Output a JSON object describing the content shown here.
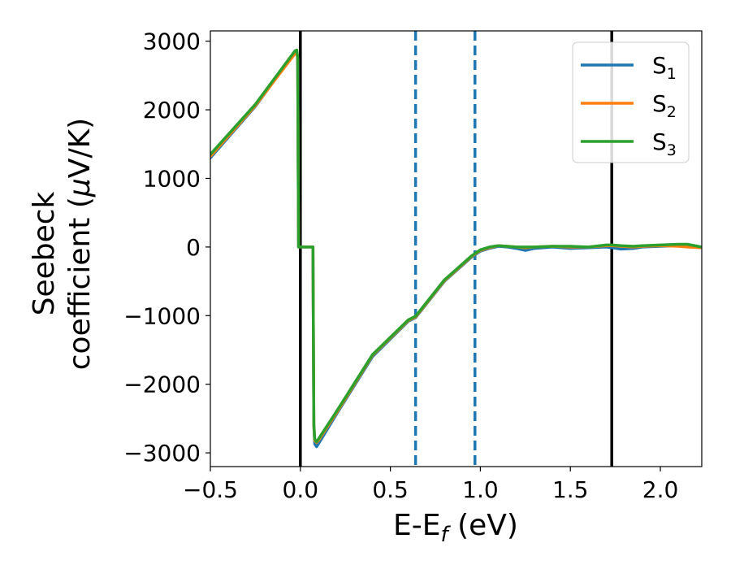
{
  "chart_data": {
    "type": "line",
    "xlabel": "E-E",
    "xlabel_sub": "f",
    "xlabel_unit": " (eV)",
    "ylabel_line1": "Seebeck",
    "ylabel_line2": "coefficient  (",
    "ylabel_mu": "μ",
    "ylabel_unit": "V/K)",
    "xlim": [
      -0.5,
      2.23
    ],
    "ylim": [
      -3200,
      3150
    ],
    "x_ticks": [
      -0.5,
      0.0,
      0.5,
      1.0,
      1.5,
      2.0
    ],
    "x_tick_labels": [
      "−0.5",
      "0.0",
      "0.5",
      "1.0",
      "1.5",
      "2.0"
    ],
    "y_ticks": [
      3000,
      2000,
      1000,
      0,
      -1000,
      -2000,
      -3000
    ],
    "y_tick_labels": [
      "3000",
      "2000",
      "1000",
      "0",
      "−1000",
      "−2000",
      "−3000"
    ],
    "legend_position": "top-right",
    "vertical_lines": [
      {
        "x": 0.0,
        "style": "solid",
        "color": "#000000"
      },
      {
        "x": 1.73,
        "style": "solid",
        "color": "#000000"
      },
      {
        "x": 0.64,
        "style": "dashed",
        "color": "#1f77b4"
      },
      {
        "x": 0.97,
        "style": "dashed",
        "color": "#1f77b4"
      }
    ],
    "series": [
      {
        "name": "S",
        "sub": "1",
        "color": "#1f77b4",
        "x": [
          -0.5,
          -0.25,
          -0.03,
          -0.02,
          -0.015,
          -0.01,
          0.0,
          0.02,
          0.05,
          0.07,
          0.075,
          0.08,
          0.09,
          0.1,
          0.2,
          0.4,
          0.6,
          0.64,
          0.8,
          0.95,
          1.0,
          1.05,
          1.1,
          1.15,
          1.2,
          1.25,
          1.3,
          1.4,
          1.5,
          1.6,
          1.7,
          1.73,
          1.78,
          1.85,
          1.9,
          2.0,
          2.1,
          2.15,
          2.23
        ],
        "y": [
          1300,
          2050,
          2840,
          2850,
          2750,
          0,
          0,
          0,
          0,
          0,
          -2600,
          -2870,
          -2910,
          -2870,
          -2440,
          -1600,
          -1080,
          -1030,
          -500,
          -150,
          -60,
          -20,
          10,
          0,
          -20,
          -50,
          -20,
          0,
          -20,
          -10,
          0,
          -10,
          -30,
          -20,
          0,
          10,
          20,
          10,
          -10
        ]
      },
      {
        "name": "S",
        "sub": "2",
        "color": "#ff7f0e",
        "x": [
          -0.5,
          -0.25,
          -0.03,
          -0.02,
          -0.015,
          -0.01,
          0.0,
          0.02,
          0.05,
          0.07,
          0.075,
          0.08,
          0.09,
          0.1,
          0.2,
          0.4,
          0.6,
          0.64,
          0.8,
          0.95,
          1.0,
          1.05,
          1.1,
          1.15,
          1.2,
          1.25,
          1.3,
          1.4,
          1.5,
          1.6,
          1.7,
          1.73,
          1.78,
          1.85,
          1.9,
          2.0,
          2.1,
          2.15,
          2.23
        ],
        "y": [
          1320,
          2060,
          2820,
          2830,
          2740,
          0,
          0,
          0,
          0,
          0,
          -2600,
          -2820,
          -2850,
          -2820,
          -2420,
          -1580,
          -1070,
          -1020,
          -490,
          -140,
          -50,
          -10,
          20,
          10,
          0,
          -10,
          0,
          10,
          0,
          0,
          20,
          20,
          10,
          0,
          10,
          20,
          10,
          0,
          -10
        ]
      },
      {
        "name": "S",
        "sub": "3",
        "color": "#2ca02c",
        "x": [
          -0.5,
          -0.25,
          -0.03,
          -0.02,
          -0.015,
          -0.01,
          0.0,
          0.02,
          0.05,
          0.07,
          0.075,
          0.08,
          0.09,
          0.1,
          0.2,
          0.4,
          0.6,
          0.64,
          0.8,
          0.95,
          1.0,
          1.05,
          1.1,
          1.15,
          1.2,
          1.25,
          1.3,
          1.4,
          1.5,
          1.6,
          1.7,
          1.73,
          1.78,
          1.85,
          1.9,
          2.0,
          2.1,
          2.15,
          2.23
        ],
        "y": [
          1350,
          2080,
          2860,
          2870,
          2760,
          0,
          0,
          0,
          0,
          0,
          -2580,
          -2800,
          -2840,
          -2800,
          -2400,
          -1570,
          -1060,
          -1010,
          -480,
          -130,
          -40,
          0,
          20,
          10,
          0,
          0,
          0,
          10,
          10,
          0,
          30,
          30,
          20,
          10,
          20,
          30,
          40,
          40,
          0
        ]
      }
    ]
  }
}
